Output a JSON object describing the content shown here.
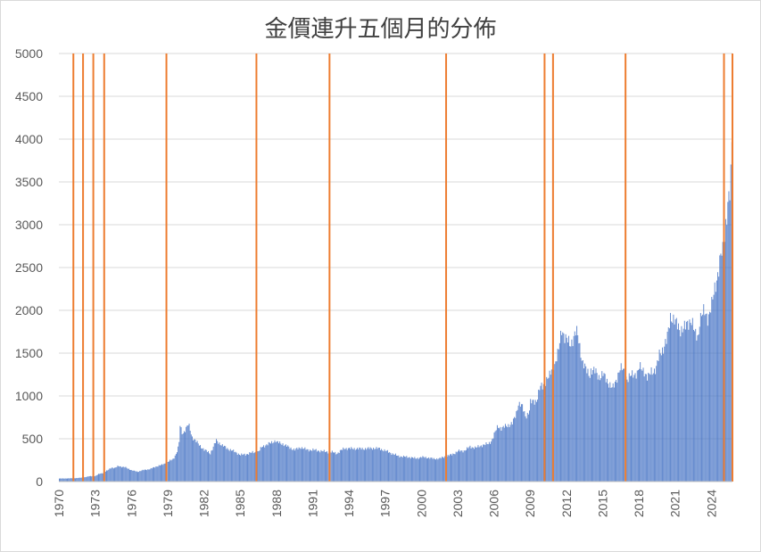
{
  "chart_data": {
    "type": "bar",
    "title": "金價連升五個月的分佈",
    "ylim": [
      0,
      5000
    ],
    "yticks": [
      "0",
      "500",
      "1000",
      "1500",
      "2000",
      "2500",
      "3000",
      "3500",
      "4000",
      "4500",
      "5000"
    ],
    "xticks": [
      "1970",
      "1973",
      "1976",
      "1979",
      "1982",
      "1985",
      "1988",
      "1991",
      "1994",
      "1997",
      "2000",
      "2003",
      "2006",
      "2009",
      "2012",
      "2015",
      "2018",
      "2021",
      "2024"
    ],
    "x_start_year": 1970,
    "x_end_year": 2025.75,
    "grid": true,
    "bar_color": "#4472c4",
    "marker_color": "#ed7d31",
    "series": [
      {
        "values": [
          [
            1970.0,
            35
          ],
          [
            1970.5,
            36
          ],
          [
            1971.0,
            38
          ],
          [
            1971.5,
            41
          ],
          [
            1972.0,
            47
          ],
          [
            1972.5,
            62
          ],
          [
            1973.0,
            65
          ],
          [
            1973.3,
            90
          ],
          [
            1973.6,
            100
          ],
          [
            1974.0,
            130
          ],
          [
            1974.3,
            165
          ],
          [
            1974.6,
            155
          ],
          [
            1974.9,
            185
          ],
          [
            1975.2,
            170
          ],
          [
            1975.5,
            165
          ],
          [
            1975.8,
            145
          ],
          [
            1976.0,
            130
          ],
          [
            1976.5,
            115
          ],
          [
            1977.0,
            135
          ],
          [
            1977.5,
            145
          ],
          [
            1978.0,
            175
          ],
          [
            1978.5,
            195
          ],
          [
            1979.0,
            230
          ],
          [
            1979.4,
            260
          ],
          [
            1979.7,
            330
          ],
          [
            1979.9,
            420
          ],
          [
            1980.0,
            650
          ],
          [
            1980.2,
            560
          ],
          [
            1980.5,
            620
          ],
          [
            1980.7,
            670
          ],
          [
            1981.0,
            520
          ],
          [
            1981.5,
            440
          ],
          [
            1982.0,
            370
          ],
          [
            1982.5,
            330
          ],
          [
            1982.8,
            420
          ],
          [
            1983.0,
            480
          ],
          [
            1983.5,
            420
          ],
          [
            1984.0,
            380
          ],
          [
            1984.5,
            350
          ],
          [
            1985.0,
            310
          ],
          [
            1985.5,
            320
          ],
          [
            1986.0,
            340
          ],
          [
            1986.5,
            350
          ],
          [
            1986.8,
            410
          ],
          [
            1987.0,
            420
          ],
          [
            1987.5,
            450
          ],
          [
            1987.9,
            480
          ],
          [
            1988.0,
            460
          ],
          [
            1988.5,
            440
          ],
          [
            1989.0,
            400
          ],
          [
            1989.5,
            370
          ],
          [
            1990.0,
            400
          ],
          [
            1990.5,
            370
          ],
          [
            1991.0,
            370
          ],
          [
            1991.5,
            360
          ],
          [
            1992.0,
            350
          ],
          [
            1992.5,
            345
          ],
          [
            1993.0,
            330
          ],
          [
            1993.3,
            360
          ],
          [
            1993.6,
            390
          ],
          [
            1994.0,
            385
          ],
          [
            1994.5,
            385
          ],
          [
            1995.0,
            383
          ],
          [
            1995.5,
            385
          ],
          [
            1996.0,
            390
          ],
          [
            1996.5,
            385
          ],
          [
            1997.0,
            360
          ],
          [
            1997.5,
            330
          ],
          [
            1998.0,
            300
          ],
          [
            1998.5,
            290
          ],
          [
            1999.0,
            285
          ],
          [
            1999.5,
            270
          ],
          [
            2000.0,
            285
          ],
          [
            2000.5,
            280
          ],
          [
            2001.0,
            265
          ],
          [
            2001.5,
            270
          ],
          [
            2002.0,
            295
          ],
          [
            2002.5,
            315
          ],
          [
            2003.0,
            355
          ],
          [
            2003.5,
            360
          ],
          [
            2004.0,
            405
          ],
          [
            2004.5,
            395
          ],
          [
            2005.0,
            425
          ],
          [
            2005.5,
            440
          ],
          [
            2005.8,
            480
          ],
          [
            2006.0,
            550
          ],
          [
            2006.3,
            650
          ],
          [
            2006.6,
            620
          ],
          [
            2007.0,
            650
          ],
          [
            2007.5,
            680
          ],
          [
            2007.8,
            780
          ],
          [
            2008.0,
            920
          ],
          [
            2008.3,
            880
          ],
          [
            2008.6,
            760
          ],
          [
            2008.9,
            820
          ],
          [
            2009.0,
            920
          ],
          [
            2009.5,
            950
          ],
          [
            2009.8,
            1100
          ],
          [
            2010.0,
            1110
          ],
          [
            2010.3,
            1190
          ],
          [
            2010.6,
            1230
          ],
          [
            2010.9,
            1380
          ],
          [
            2011.0,
            1370
          ],
          [
            2011.3,
            1500
          ],
          [
            2011.6,
            1800
          ],
          [
            2011.8,
            1700
          ],
          [
            2012.0,
            1650
          ],
          [
            2012.3,
            1600
          ],
          [
            2012.6,
            1700
          ],
          [
            2012.8,
            1750
          ],
          [
            2013.0,
            1650
          ],
          [
            2013.3,
            1400
          ],
          [
            2013.6,
            1300
          ],
          [
            2013.9,
            1250
          ],
          [
            2014.0,
            1300
          ],
          [
            2014.4,
            1280
          ],
          [
            2014.7,
            1220
          ],
          [
            2015.0,
            1250
          ],
          [
            2015.4,
            1170
          ],
          [
            2015.8,
            1080
          ],
          [
            2016.0,
            1150
          ],
          [
            2016.4,
            1320
          ],
          [
            2016.7,
            1300
          ],
          [
            2017.0,
            1200
          ],
          [
            2017.5,
            1250
          ],
          [
            2017.9,
            1280
          ],
          [
            2018.0,
            1330
          ],
          [
            2018.4,
            1300
          ],
          [
            2018.7,
            1200
          ],
          [
            2019.0,
            1290
          ],
          [
            2019.4,
            1310
          ],
          [
            2019.7,
            1500
          ],
          [
            2020.0,
            1560
          ],
          [
            2020.3,
            1650
          ],
          [
            2020.6,
            1950
          ],
          [
            2020.9,
            1880
          ],
          [
            2021.0,
            1850
          ],
          [
            2021.4,
            1780
          ],
          [
            2021.8,
            1790
          ],
          [
            2022.0,
            1850
          ],
          [
            2022.3,
            1900
          ],
          [
            2022.6,
            1720
          ],
          [
            2022.9,
            1700
          ],
          [
            2023.0,
            1900
          ],
          [
            2023.4,
            1980
          ],
          [
            2023.7,
            1920
          ],
          [
            2024.0,
            2050
          ],
          [
            2024.3,
            2300
          ],
          [
            2024.6,
            2500
          ],
          [
            2024.8,
            2650
          ],
          [
            2025.0,
            2700
          ],
          [
            2025.2,
            3100
          ],
          [
            2025.4,
            3300
          ],
          [
            2025.55,
            3350
          ],
          [
            2025.65,
            3900
          ],
          [
            2025.75,
            4200
          ]
        ]
      }
    ],
    "markers_years": [
      1971.2,
      1972.0,
      1972.85,
      1973.75,
      1978.9,
      1986.35,
      1992.4,
      2002.05,
      2010.2,
      2010.9,
      2016.9,
      2025.05,
      2025.75
    ]
  }
}
